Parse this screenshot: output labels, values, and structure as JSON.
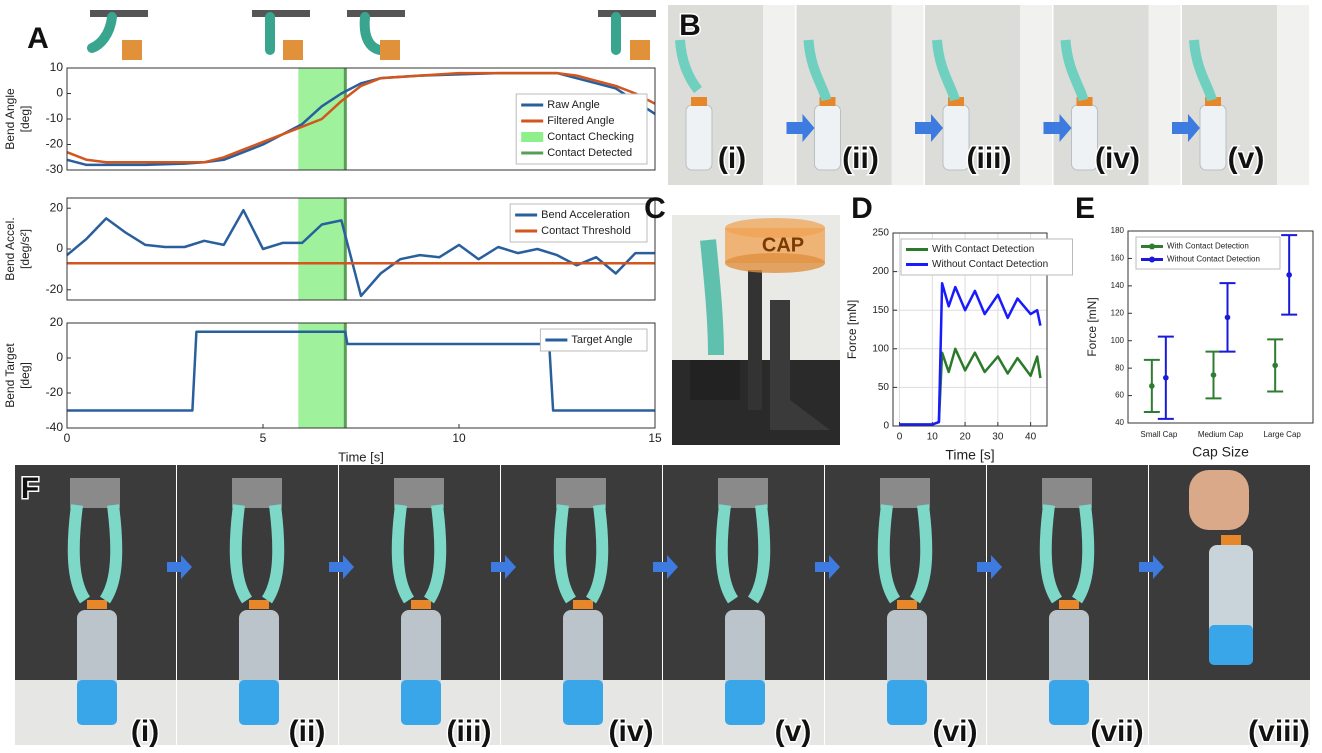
{
  "chart_data": [
    {
      "type": "line",
      "xlim": [
        0,
        15
      ],
      "ylim": [
        -30,
        10
      ],
      "yticks": [
        -30,
        -20,
        -10,
        0,
        10
      ],
      "ylabel": [
        "Bend Angle",
        "[deg]"
      ],
      "legend": "lower right",
      "x": [
        0,
        0.5,
        1,
        2,
        3,
        3.5,
        4,
        4.5,
        5,
        5.5,
        6,
        6.5,
        7,
        7.5,
        8,
        9,
        10,
        11,
        12,
        12.5,
        13,
        13.5,
        14,
        14.5,
        15
      ],
      "series": [
        {
          "name": "Raw Angle",
          "color": "#2a5f9e",
          "values": [
            -26,
            -28,
            -28,
            -28,
            -27.5,
            -27,
            -26,
            -23,
            -20,
            -16,
            -12,
            -5,
            0,
            4,
            6,
            7,
            7.5,
            8,
            8,
            8,
            6,
            4,
            2,
            -3,
            -8
          ]
        },
        {
          "name": "Filtered Angle",
          "color": "#d2561e",
          "values": [
            -23,
            -26,
            -27,
            -27,
            -27,
            -27,
            -25,
            -22,
            -19,
            -16,
            -13,
            -10,
            -3,
            3,
            6,
            7,
            8,
            8,
            8,
            8,
            7,
            5,
            3,
            0,
            -4
          ]
        }
      ],
      "regions": [
        {
          "name": "Contact Checking",
          "start": 5.9,
          "end": 7.1,
          "color": "#8ef08a"
        }
      ],
      "lines": [
        {
          "name": "Contact Detected",
          "x": 7.1,
          "color": "#5a9e55"
        }
      ]
    },
    {
      "type": "line",
      "xlim": [
        0,
        15
      ],
      "ylim": [
        -25,
        25
      ],
      "yticks": [
        -20,
        0,
        20
      ],
      "ylabel": [
        "Bend Accel.",
        "[deg/s²]"
      ],
      "legend": "upper right",
      "x": [
        0,
        0.5,
        1,
        1.5,
        2,
        2.5,
        3,
        3.5,
        4,
        4.5,
        5,
        5.5,
        6,
        6.5,
        7,
        7.5,
        8,
        8.5,
        9,
        9.5,
        10,
        10.5,
        11,
        11.5,
        12,
        12.5,
        13,
        13.5,
        14,
        14.5,
        15
      ],
      "series": [
        {
          "name": "Bend Acceleration",
          "color": "#2a5f9e",
          "values": [
            -3,
            5,
            15,
            8,
            2,
            1,
            1,
            4,
            2,
            19,
            0,
            3,
            3,
            12,
            14,
            -23,
            -12,
            -5,
            -3,
            -4,
            2,
            -5,
            1,
            -2,
            0,
            -3,
            -8,
            -4,
            -12,
            -2,
            -2
          ]
        },
        {
          "name": "Contact Threshold",
          "color": "#d2561e",
          "x": [
            0,
            15
          ],
          "values": [
            -7,
            -7
          ]
        }
      ],
      "regions": [
        {
          "start": 5.9,
          "end": 7.1,
          "color": "#8ef08a"
        }
      ],
      "lines": [
        {
          "x": 7.1,
          "color": "#5a9e55"
        }
      ]
    },
    {
      "type": "line",
      "xlim": [
        0,
        15
      ],
      "ylim": [
        -40,
        20
      ],
      "yticks": [
        -40,
        -20,
        0,
        20
      ],
      "xticks": [
        0,
        5,
        10,
        15
      ],
      "xlabel": "Time [s]",
      "ylabel": [
        "Bend Target",
        "[deg]"
      ],
      "legend": "upper right",
      "x": [
        0,
        3.2,
        3.3,
        7.1,
        7.15,
        12.3,
        12.4,
        15
      ],
      "series": [
        {
          "name": "Target Angle",
          "color": "#2a5f9e",
          "values": [
            -30,
            -30,
            15,
            15,
            8,
            8,
            -30,
            -30
          ]
        }
      ],
      "regions": [
        {
          "start": 5.9,
          "end": 7.1,
          "color": "#8ef08a"
        }
      ],
      "lines": [
        {
          "x": 7.1,
          "color": "#5a9e55"
        }
      ]
    },
    {
      "type": "line",
      "xlim": [
        -2,
        45
      ],
      "ylim": [
        0,
        250
      ],
      "xticks": [
        0,
        10,
        20,
        30,
        40
      ],
      "yticks": [
        0,
        50,
        100,
        150,
        200,
        250
      ],
      "xlabel": "Time [s]",
      "ylabel": [
        "Force [mN]"
      ],
      "grid": true,
      "legend": "upper left",
      "x": [
        0,
        5,
        10,
        12,
        13,
        15,
        17,
        20,
        23,
        26,
        30,
        33,
        36,
        40,
        42,
        43
      ],
      "series": [
        {
          "name": "With Contact Detection",
          "color": "#2b7a2b",
          "values": [
            2,
            2,
            2,
            5,
            95,
            70,
            100,
            72,
            95,
            70,
            90,
            68,
            88,
            65,
            90,
            62
          ]
        },
        {
          "name": "Without Contact Detection",
          "color": "#1a1aff",
          "values": [
            2,
            2,
            2,
            5,
            185,
            155,
            180,
            150,
            175,
            145,
            170,
            140,
            165,
            145,
            150,
            130
          ]
        }
      ]
    },
    {
      "type": "errorbar",
      "categories": [
        "Small Cap",
        "Medium Cap",
        "Large Cap"
      ],
      "ylim": [
        40,
        180
      ],
      "yticks": [
        40,
        60,
        80,
        100,
        120,
        140,
        160,
        180
      ],
      "xlabel": "Cap Size",
      "ylabel": [
        "Force [mN]"
      ],
      "legend": "upper left",
      "series": [
        {
          "name": "With Contact Detection",
          "color": "#2e7d32",
          "values": [
            67,
            75,
            82
          ],
          "errors": [
            19,
            17,
            19
          ]
        },
        {
          "name": "Without Contact Detection",
          "color": "#1a1adb",
          "values": [
            73,
            117,
            148
          ],
          "errors": [
            30,
            25,
            29
          ]
        }
      ]
    }
  ],
  "panel_labels": [
    "A",
    "B",
    "C",
    "D",
    "E",
    "F"
  ],
  "photo_b_labels": [
    "(i)",
    "(ii)",
    "(iii)",
    "(iv)",
    "(v)"
  ],
  "photo_c_label": "CAP",
  "photo_f_labels": [
    "(i)",
    "(ii)",
    "(iii)",
    "(iv)",
    "(v)",
    "(vi)",
    "(vii)",
    "(viii)"
  ]
}
